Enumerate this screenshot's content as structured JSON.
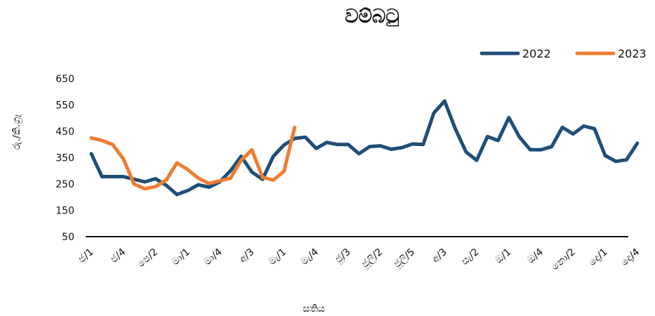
{
  "chart_data": {
    "type": "line",
    "title": "වම්බටු",
    "xlabel": "සතිය",
    "ylabel": "රු./කි.ග්‍රෑ",
    "ylim": [
      50,
      650
    ],
    "yticks": [
      50,
      150,
      250,
      350,
      450,
      550,
      650
    ],
    "grid": false,
    "legend_position": "top-right",
    "x_tick_labels": [
      "ජ/1",
      "ජ/4",
      "පෙ/2",
      "මා/1",
      "මා/4",
      "අ/3",
      "මැ/1",
      "මැ/4",
      "ජූ/3",
      "ජූලි/2",
      "ජූලි/5",
      "අ/3",
      "සැ/2",
      "ඔ/1",
      "ඔ/4",
      "නො/2",
      "දෙ/1",
      "දෙ/4"
    ],
    "x_tick_every": 3,
    "series": [
      {
        "name": "2022",
        "color": "#1f4e79",
        "values": [
          365,
          278,
          278,
          278,
          268,
          258,
          270,
          245,
          210,
          225,
          247,
          238,
          258,
          300,
          355,
          295,
          268,
          355,
          398,
          423,
          428,
          385,
          408,
          400,
          400,
          365,
          392,
          395,
          382,
          388,
          402,
          400,
          520,
          565,
          460,
          372,
          340,
          430,
          415,
          502,
          428,
          380,
          380,
          392,
          465,
          440,
          470,
          460,
          358,
          336,
          342,
          405
        ]
      },
      {
        "name": "2023",
        "color": "#ed7d31",
        "values": [
          425,
          415,
          400,
          345,
          250,
          232,
          240,
          265,
          330,
          305,
          272,
          252,
          262,
          272,
          340,
          380,
          275,
          265,
          298,
          465
        ]
      }
    ]
  }
}
